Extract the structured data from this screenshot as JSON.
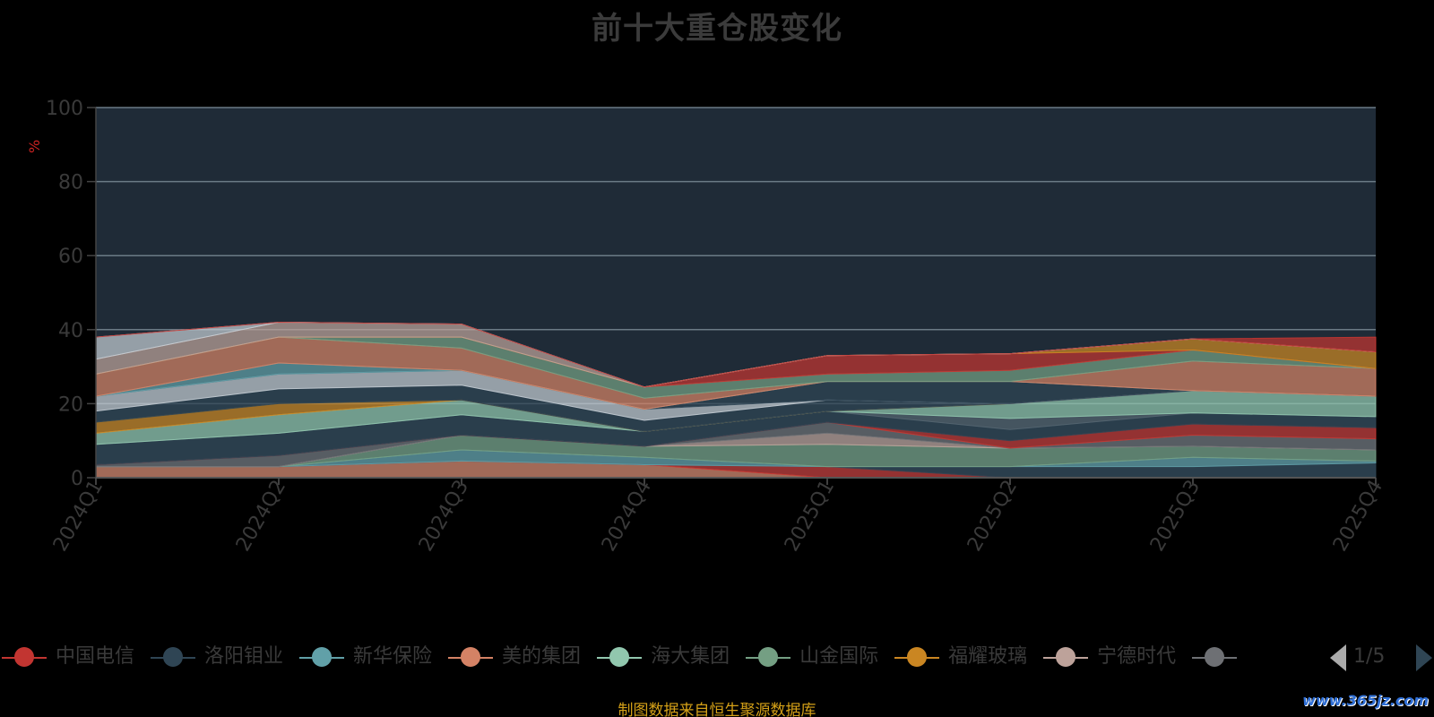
{
  "title": "前十大重仓股变化",
  "source_note": "制图数据来自恒生聚源数据库",
  "watermark": "www.365jz.com",
  "pager": {
    "text": "1/5"
  },
  "colors": {
    "plot_bg": "#1f2b37",
    "grid": "#6b7b86",
    "axis_text": "#3a3a3a",
    "unit_text": "#cc2222"
  },
  "legend": [
    {
      "name": "中国电信",
      "color": "#c23531"
    },
    {
      "name": "洛阳钼业",
      "color": "#2f4554"
    },
    {
      "name": "新华保险",
      "color": "#61a0a8"
    },
    {
      "name": "美的集团",
      "color": "#d48265"
    },
    {
      "name": "海大集团",
      "color": "#91c7ae"
    },
    {
      "name": "山金国际",
      "color": "#749f83"
    },
    {
      "name": "福耀玻璃",
      "color": "#ca8622"
    },
    {
      "name": "宁德时代",
      "color": "#bda29a"
    },
    {
      "name": "",
      "color": "#6e7074"
    }
  ],
  "chart_data": {
    "type": "area",
    "stacked": true,
    "title": "前十大重仓股变化",
    "ylabel": "%",
    "ylim": [
      0,
      100
    ],
    "yticks": [
      0,
      20,
      40,
      60,
      80,
      100
    ],
    "categories": [
      "2024Q1",
      "2024Q2",
      "2024Q3",
      "2024Q4",
      "2025Q1",
      "2025Q2",
      "2025Q3",
      "2025Q4"
    ],
    "series": [
      {
        "color": "#d48265",
        "values": [
          3.0,
          3.0,
          4.5,
          3.5,
          0.0,
          0.0,
          0.0,
          0.0
        ]
      },
      {
        "color": "#c23531",
        "values": [
          0.0,
          0.0,
          0.0,
          0.0,
          3.0,
          0.0,
          0.0,
          0.0
        ]
      },
      {
        "color": "#2f4554",
        "values": [
          0.0,
          0.0,
          0.0,
          0.0,
          0.0,
          3.0,
          3.0,
          4.0
        ]
      },
      {
        "color": "#61a0a8",
        "values": [
          0.0,
          0.0,
          3.0,
          2.0,
          0.0,
          0.0,
          2.5,
          0.5
        ]
      },
      {
        "color": "#749f83",
        "values": [
          0.0,
          0.0,
          4.0,
          3.0,
          6.0,
          5.0,
          3.0,
          3.0
        ]
      },
      {
        "color": "#bda29a",
        "values": [
          0.0,
          0.0,
          0.0,
          0.0,
          3.0,
          0.0,
          0.0,
          0.0
        ]
      },
      {
        "color": "#6e7074",
        "values": [
          0.5,
          3.0,
          0.0,
          0.0,
          3.0,
          0.0,
          3.0,
          3.0
        ]
      },
      {
        "color": "#c23531",
        "values": [
          0.0,
          0.0,
          0.0,
          0.0,
          0.0,
          2.0,
          3.0,
          3.0
        ]
      },
      {
        "color": "#2f4554",
        "values": [
          5.5,
          6.0,
          5.5,
          4.0,
          3.0,
          3.0,
          3.0,
          3.0
        ]
      },
      {
        "color": "#546570",
        "values": [
          0.0,
          0.0,
          0.0,
          0.0,
          0.0,
          3.0,
          0.0,
          0.0
        ]
      },
      {
        "color": "#91c7ae",
        "values": [
          3.0,
          5.0,
          4.0,
          0.0,
          0.0,
          4.0,
          6.0,
          5.5
        ]
      },
      {
        "color": "#ca8622",
        "values": [
          3.0,
          3.0,
          0.0,
          0.0,
          0.0,
          0.0,
          0.0,
          0.0
        ]
      },
      {
        "color": "#2f4554",
        "values": [
          3.0,
          4.0,
          4.0,
          3.0,
          3.0,
          0.0,
          0.0,
          0.0
        ]
      },
      {
        "color": "#c4ccd3",
        "values": [
          4.0,
          4.0,
          4.0,
          3.0,
          0.0,
          0.0,
          0.0,
          0.0
        ]
      },
      {
        "color": "#2f4554",
        "values": [
          0.0,
          0.0,
          0.0,
          0.0,
          5.0,
          6.0,
          0.0,
          0.0
        ]
      },
      {
        "color": "#61a0a8",
        "values": [
          0.0,
          3.0,
          0.0,
          0.0,
          0.0,
          0.0,
          0.0,
          0.0
        ]
      },
      {
        "color": "#d48265",
        "values": [
          6.0,
          7.0,
          6.0,
          3.0,
          0.0,
          0.0,
          8.0,
          7.5
        ]
      },
      {
        "color": "#749f83",
        "values": [
          0.0,
          0.0,
          3.0,
          3.0,
          2.0,
          3.0,
          3.0,
          0.0
        ]
      },
      {
        "color": "#c23531",
        "values": [
          0.0,
          0.0,
          0.0,
          0.0,
          5.0,
          4.5,
          0.0,
          0.0
        ]
      },
      {
        "color": "#ca8622",
        "values": [
          0.0,
          0.0,
          0.0,
          0.0,
          0.0,
          0.0,
          3.0,
          4.5
        ]
      },
      {
        "color": "#bda29a",
        "values": [
          4.0,
          4.0,
          3.5,
          0.0,
          0.0,
          0.0,
          0.0,
          0.0
        ]
      },
      {
        "color": "#c4ccd3",
        "values": [
          6.0,
          0.0,
          0.0,
          0.0,
          0.0,
          0.0,
          0.0,
          0.0
        ]
      },
      {
        "color": "#c23531",
        "values": [
          0.0,
          0.0,
          0.0,
          0.0,
          0.0,
          0.0,
          0.0,
          4.0
        ]
      }
    ]
  }
}
